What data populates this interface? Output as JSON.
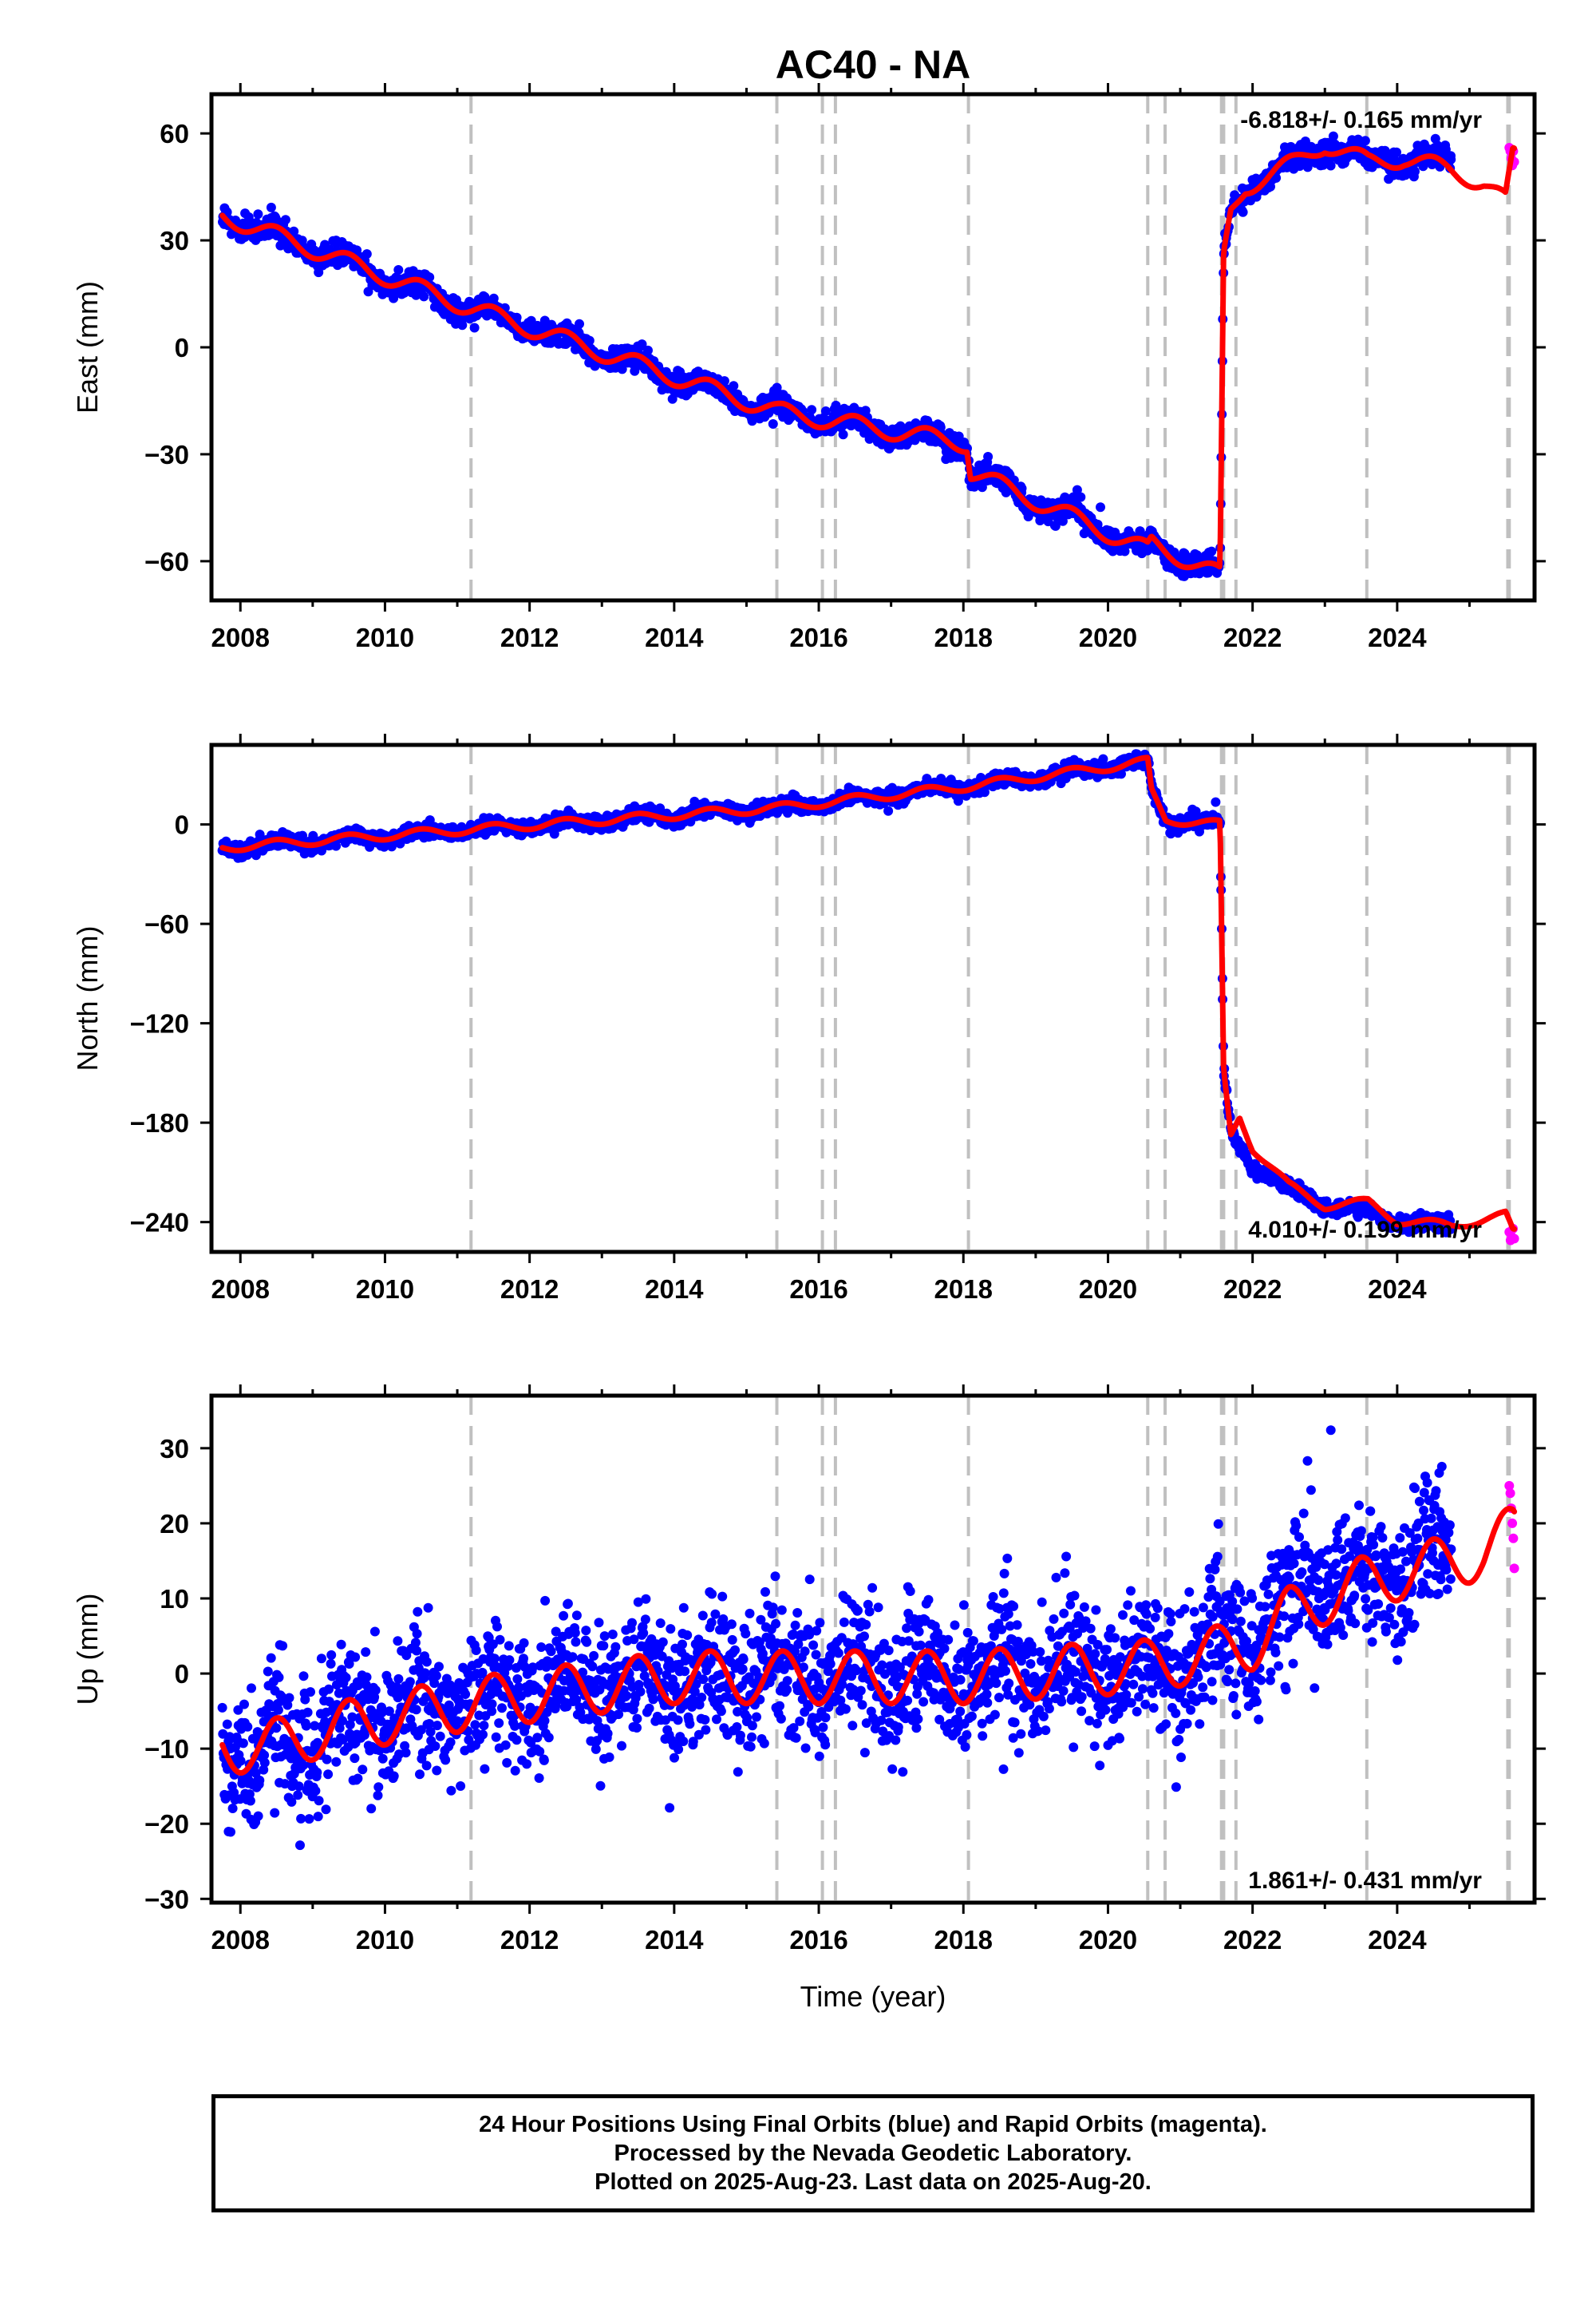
{
  "colors": {
    "final_orbits": "#0000ff",
    "rapid_orbits": "#ff00ff",
    "model": "#ff0000",
    "offset_lines": "#c0c0c0",
    "frame": "#000000"
  },
  "chart_data": {
    "type": "scatter",
    "title": "AC40 - NA",
    "xlabel": "Time (year)",
    "xlim": [
      2007.6,
      2025.9
    ],
    "xticks": [
      2008,
      2010,
      2012,
      2014,
      2016,
      2018,
      2020,
      2022,
      2024
    ],
    "offset_epochs": [
      2011.19,
      2015.42,
      2016.05,
      2016.23,
      2018.07,
      2020.55,
      2020.79,
      2021.57,
      2021.6,
      2021.77,
      2023.58,
      2025.53,
      2025.55
    ],
    "panels": [
      {
        "id": "east",
        "ylabel": "East (mm)",
        "ylim": [
          -71,
          71
        ],
        "yticks": [
          -60,
          -30,
          0,
          30,
          60
        ],
        "rate_label": "-6.818+/- 0.165 mm/yr",
        "rate_position": "top-right",
        "series": [
          {
            "name": "Final Orbits",
            "color": "#0000ff",
            "style": "points",
            "points_per_year": 140,
            "scatter_mm": 1.6,
            "knots": [
              [
                2007.75,
                37
              ],
              [
                2011.19,
                11
              ],
              [
                2015.42,
                -18
              ],
              [
                2018.05,
                -27
              ],
              [
                2018.1,
                -35
              ],
              [
                2020.55,
                -57
              ],
              [
                2020.6,
                -55
              ],
              [
                2021.55,
                -64
              ],
              [
                2021.6,
                25
              ],
              [
                2021.7,
                38
              ],
              [
                2021.9,
                45
              ],
              [
                2022.2,
                48
              ],
              [
                2022.6,
                52
              ],
              [
                2023.0,
                57
              ],
              [
                2023.6,
                52
              ],
              [
                2024.1,
                53
              ],
              [
                2024.75,
                52
              ]
            ]
          },
          {
            "name": "Rapid Orbits",
            "color": "#ff00ff",
            "style": "points",
            "x_range": [
              2025.55,
              2025.62
            ],
            "y_values": [
              56,
              55,
              53,
              51,
              55,
              52
            ]
          },
          {
            "name": "Model",
            "color": "#ff0000",
            "style": "line",
            "seasonal_amp_mm": 2.5,
            "x_end": 2025.62,
            "knots": [
              [
                2007.75,
                37
              ],
              [
                2011.19,
                11
              ],
              [
                2015.42,
                -18
              ],
              [
                2018.05,
                -27
              ],
              [
                2018.1,
                -35
              ],
              [
                2020.55,
                -57
              ],
              [
                2020.6,
                -55
              ],
              [
                2021.55,
                -64
              ],
              [
                2021.6,
                25
              ],
              [
                2021.7,
                38
              ],
              [
                2021.9,
                45
              ],
              [
                2022.2,
                48
              ],
              [
                2022.6,
                52
              ],
              [
                2023.0,
                57
              ],
              [
                2023.6,
                52
              ],
              [
                2024.1,
                53
              ],
              [
                2024.7,
                50
              ],
              [
                2025.2,
                46
              ],
              [
                2025.5,
                41
              ],
              [
                2025.6,
                54
              ]
            ]
          }
        ]
      },
      {
        "id": "north",
        "ylabel": "North (mm)",
        "ylim": [
          -258,
          48
        ],
        "yticks": [
          -240,
          -180,
          -120,
          -60,
          0
        ],
        "rate_label": "4.010+/- 0.199 mm/yr",
        "rate_position": "bottom-right",
        "series": [
          {
            "name": "Final Orbits",
            "color": "#0000ff",
            "style": "points",
            "points_per_year": 140,
            "scatter_mm": 2.2,
            "knots": [
              [
                2007.75,
                -14
              ],
              [
                2011.19,
                -3
              ],
              [
                2015.42,
                10
              ],
              [
                2018.07,
                23
              ],
              [
                2020.55,
                38
              ],
              [
                2020.6,
                20
              ],
              [
                2020.8,
                3
              ],
              [
                2021.55,
                0
              ],
              [
                2021.6,
                -150
              ],
              [
                2021.7,
                -185
              ],
              [
                2022.0,
                -205
              ],
              [
                2022.5,
                -220
              ],
              [
                2023.0,
                -230
              ],
              [
                2023.6,
                -234
              ],
              [
                2024.0,
                -239
              ],
              [
                2024.75,
                -243
              ]
            ]
          },
          {
            "name": "Rapid Orbits",
            "color": "#ff00ff",
            "style": "points",
            "x_range": [
              2025.55,
              2025.62
            ],
            "y_values": [
              -246,
              -251,
              -249,
              -244,
              -250
            ]
          },
          {
            "name": "Model",
            "color": "#ff0000",
            "style": "line",
            "seasonal_amp_mm": 2.5,
            "x_end": 2025.62,
            "knots": [
              [
                2007.75,
                -14
              ],
              [
                2011.19,
                -3
              ],
              [
                2015.42,
                10
              ],
              [
                2018.07,
                23
              ],
              [
                2020.55,
                38
              ],
              [
                2020.6,
                20
              ],
              [
                2020.8,
                3
              ],
              [
                2021.55,
                0
              ],
              [
                2021.6,
                -150
              ],
              [
                2021.7,
                -188
              ],
              [
                2021.82,
                -176
              ],
              [
                2022.0,
                -195
              ],
              [
                2022.5,
                -218
              ],
              [
                2023.0,
                -230
              ],
              [
                2023.6,
                -228
              ],
              [
                2024.0,
                -239
              ],
              [
                2024.75,
                -242
              ],
              [
                2025.5,
                -236
              ],
              [
                2025.6,
                -246
              ]
            ]
          }
        ]
      },
      {
        "id": "up",
        "ylabel": "Up (mm)",
        "ylim": [
          -30.5,
          37
        ],
        "yticks": [
          -30,
          -20,
          -10,
          0,
          10,
          20,
          30
        ],
        "rate_label": "1.861+/- 0.431 mm/yr",
        "rate_position": "bottom-right",
        "series": [
          {
            "name": "Final Orbits",
            "color": "#0000ff",
            "style": "points",
            "points_per_year": 140,
            "scatter_mm": 4.5,
            "knots": [
              [
                2007.75,
                -10
              ],
              [
                2008.3,
                -11
              ],
              [
                2009.0,
                -8
              ],
              [
                2010.0,
                -5
              ],
              [
                2011.19,
                -3
              ],
              [
                2012.0,
                -2
              ],
              [
                2014.0,
                -0.5
              ],
              [
                2016.0,
                0
              ],
              [
                2018.0,
                0
              ],
              [
                2020.55,
                1
              ],
              [
                2021.6,
                3
              ],
              [
                2022.0,
                5
              ],
              [
                2022.5,
                10
              ],
              [
                2023.5,
                13
              ],
              [
                2024.75,
                16
              ]
            ]
          },
          {
            "name": "Rapid Orbits",
            "color": "#ff00ff",
            "style": "points",
            "x_range": [
              2025.55,
              2025.62
            ],
            "y_values": [
              25,
              24,
              22,
              20,
              18,
              14
            ]
          },
          {
            "name": "Model",
            "color": "#ff0000",
            "style": "line",
            "seasonal_amp_mm": 3.5,
            "x_end": 2025.62,
            "knots": [
              [
                2007.75,
                -9.5
              ],
              [
                2008.3,
                -10
              ],
              [
                2009.0,
                -8
              ],
              [
                2010.0,
                -6
              ],
              [
                2011.19,
                -4
              ],
              [
                2012.0,
                -3
              ],
              [
                2014.0,
                -0.5
              ],
              [
                2016.0,
                -0.5
              ],
              [
                2018.0,
                -0.5
              ],
              [
                2020.55,
                1
              ],
              [
                2021.6,
                3
              ],
              [
                2022.0,
                4
              ],
              [
                2022.5,
                8
              ],
              [
                2023.5,
                12
              ],
              [
                2024.75,
                15
              ],
              [
                2025.2,
                16
              ],
              [
                2025.6,
                19
              ]
            ]
          }
        ]
      }
    ],
    "caption": [
      "24 Hour Positions Using Final Orbits (blue) and Rapid Orbits (magenta).",
      "Processed by the Nevada Geodetic Laboratory.",
      "Plotted on 2025-Aug-23. Last data on 2025-Aug-20."
    ]
  }
}
